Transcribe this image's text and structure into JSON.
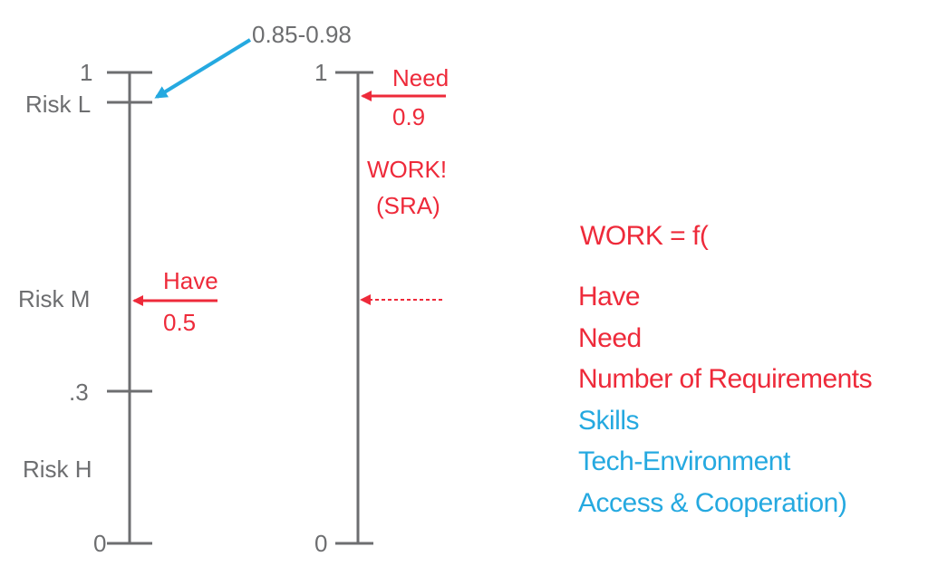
{
  "left_scale": {
    "top_value": "1",
    "bottom_value": "0",
    "mid_value": ".3",
    "risk_low": "Risk L",
    "risk_medium": "Risk M",
    "risk_high": "Risk H",
    "range_callout": "0.85-0.98",
    "have_label": "Have",
    "have_value": "0.5"
  },
  "right_scale": {
    "top_value": "1",
    "bottom_value": "0",
    "need_label": "Need",
    "need_value": "0.9",
    "work_label": "WORK!",
    "work_sub": "(SRA)"
  },
  "formula": {
    "heading": "WORK = f(",
    "factors": [
      {
        "text": "Have",
        "color": "#ee2a3a"
      },
      {
        "text": "Need",
        "color": "#ee2a3a"
      },
      {
        "text": "Number of Requirements",
        "color": "#ee2a3a"
      },
      {
        "text": "Skills",
        "color": "#25a9e0"
      },
      {
        "text": "Tech-Environment",
        "color": "#25a9e0"
      },
      {
        "text": "Access & Cooperation)",
        "color": "#25a9e0"
      }
    ]
  },
  "colors": {
    "gray": "#6d6e70",
    "red": "#ee2a3a",
    "blue": "#25a9e0"
  }
}
